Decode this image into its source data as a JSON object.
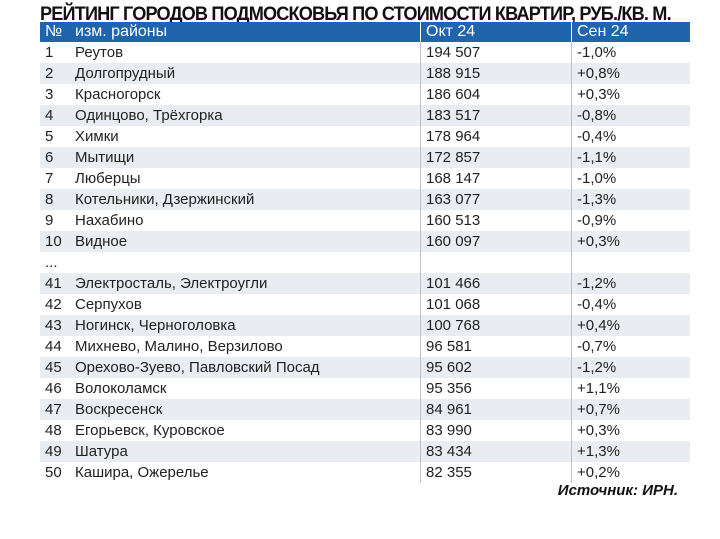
{
  "title": "РЕЙТИНГ ГОРОДОВ ПОДМОСКОВЬЯ ПО СТОИМОСТИ КВАРТИР, РУБ./КВ. М.",
  "headers": {
    "num": "№",
    "name": "изм. районы",
    "oct": "Окт 24",
    "sep": "Сен 24"
  },
  "rows": [
    {
      "num": "1",
      "name": "Реутов",
      "oct": "194 507",
      "sep": "-1,0%"
    },
    {
      "num": "2",
      "name": "Долгопрудный",
      "oct": "188 915",
      "sep": "+0,8%"
    },
    {
      "num": "3",
      "name": "Красногорск",
      "oct": "186 604",
      "sep": "+0,3%"
    },
    {
      "num": "4",
      "name": "Одинцово, Трёхгорка",
      "oct": "183 517",
      "sep": "-0,8%"
    },
    {
      "num": "5",
      "name": "Химки",
      "oct": "178 964",
      "sep": "-0,4%"
    },
    {
      "num": "6",
      "name": "Мытищи",
      "oct": "172 857",
      "sep": "-1,1%"
    },
    {
      "num": "7",
      "name": "Люберцы",
      "oct": "168 147",
      "sep": "-1,0%"
    },
    {
      "num": "8",
      "name": "Котельники, Дзержинский",
      "oct": "163 077",
      "sep": "-1,3%"
    },
    {
      "num": "9",
      "name": "Нахабино",
      "oct": "160 513",
      "sep": "-0,9%"
    },
    {
      "num": "10",
      "name": "Видное",
      "oct": "160 097",
      "sep": "+0,3%"
    },
    {
      "num": "...",
      "name": "",
      "oct": "",
      "sep": ""
    },
    {
      "num": "41",
      "name": "Электросталь, Электроугли",
      "oct": "101 466",
      "sep": "-1,2%"
    },
    {
      "num": "42",
      "name": "Серпухов",
      "oct": "101 068",
      "sep": "-0,4%"
    },
    {
      "num": "43",
      "name": "Ногинск, Черноголовка",
      "oct": "100 768",
      "sep": "+0,4%"
    },
    {
      "num": "44",
      "name": "Михнево, Малино, Верзилово",
      "oct": "96 581",
      "sep": "-0,7%"
    },
    {
      "num": "45",
      "name": "Орехово-Зуево, Павловский Посад",
      "oct": "95 602",
      "sep": "-1,2%"
    },
    {
      "num": "46",
      "name": "Волоколамск",
      "oct": "95 356",
      "sep": "+1,1%"
    },
    {
      "num": "47",
      "name": "Воскресенск",
      "oct": "84 961",
      "sep": "+0,7%"
    },
    {
      "num": "48",
      "name": "Егорьевск, Куровское",
      "oct": "83 990",
      "sep": "+0,3%"
    },
    {
      "num": "49",
      "name": "Шатура",
      "oct": "83 434",
      "sep": "+1,3%"
    },
    {
      "num": "50",
      "name": "Кашира, Ожерелье",
      "oct": "82 355",
      "sep": "+0,2%"
    }
  ],
  "source": "Источник: ИРН."
}
